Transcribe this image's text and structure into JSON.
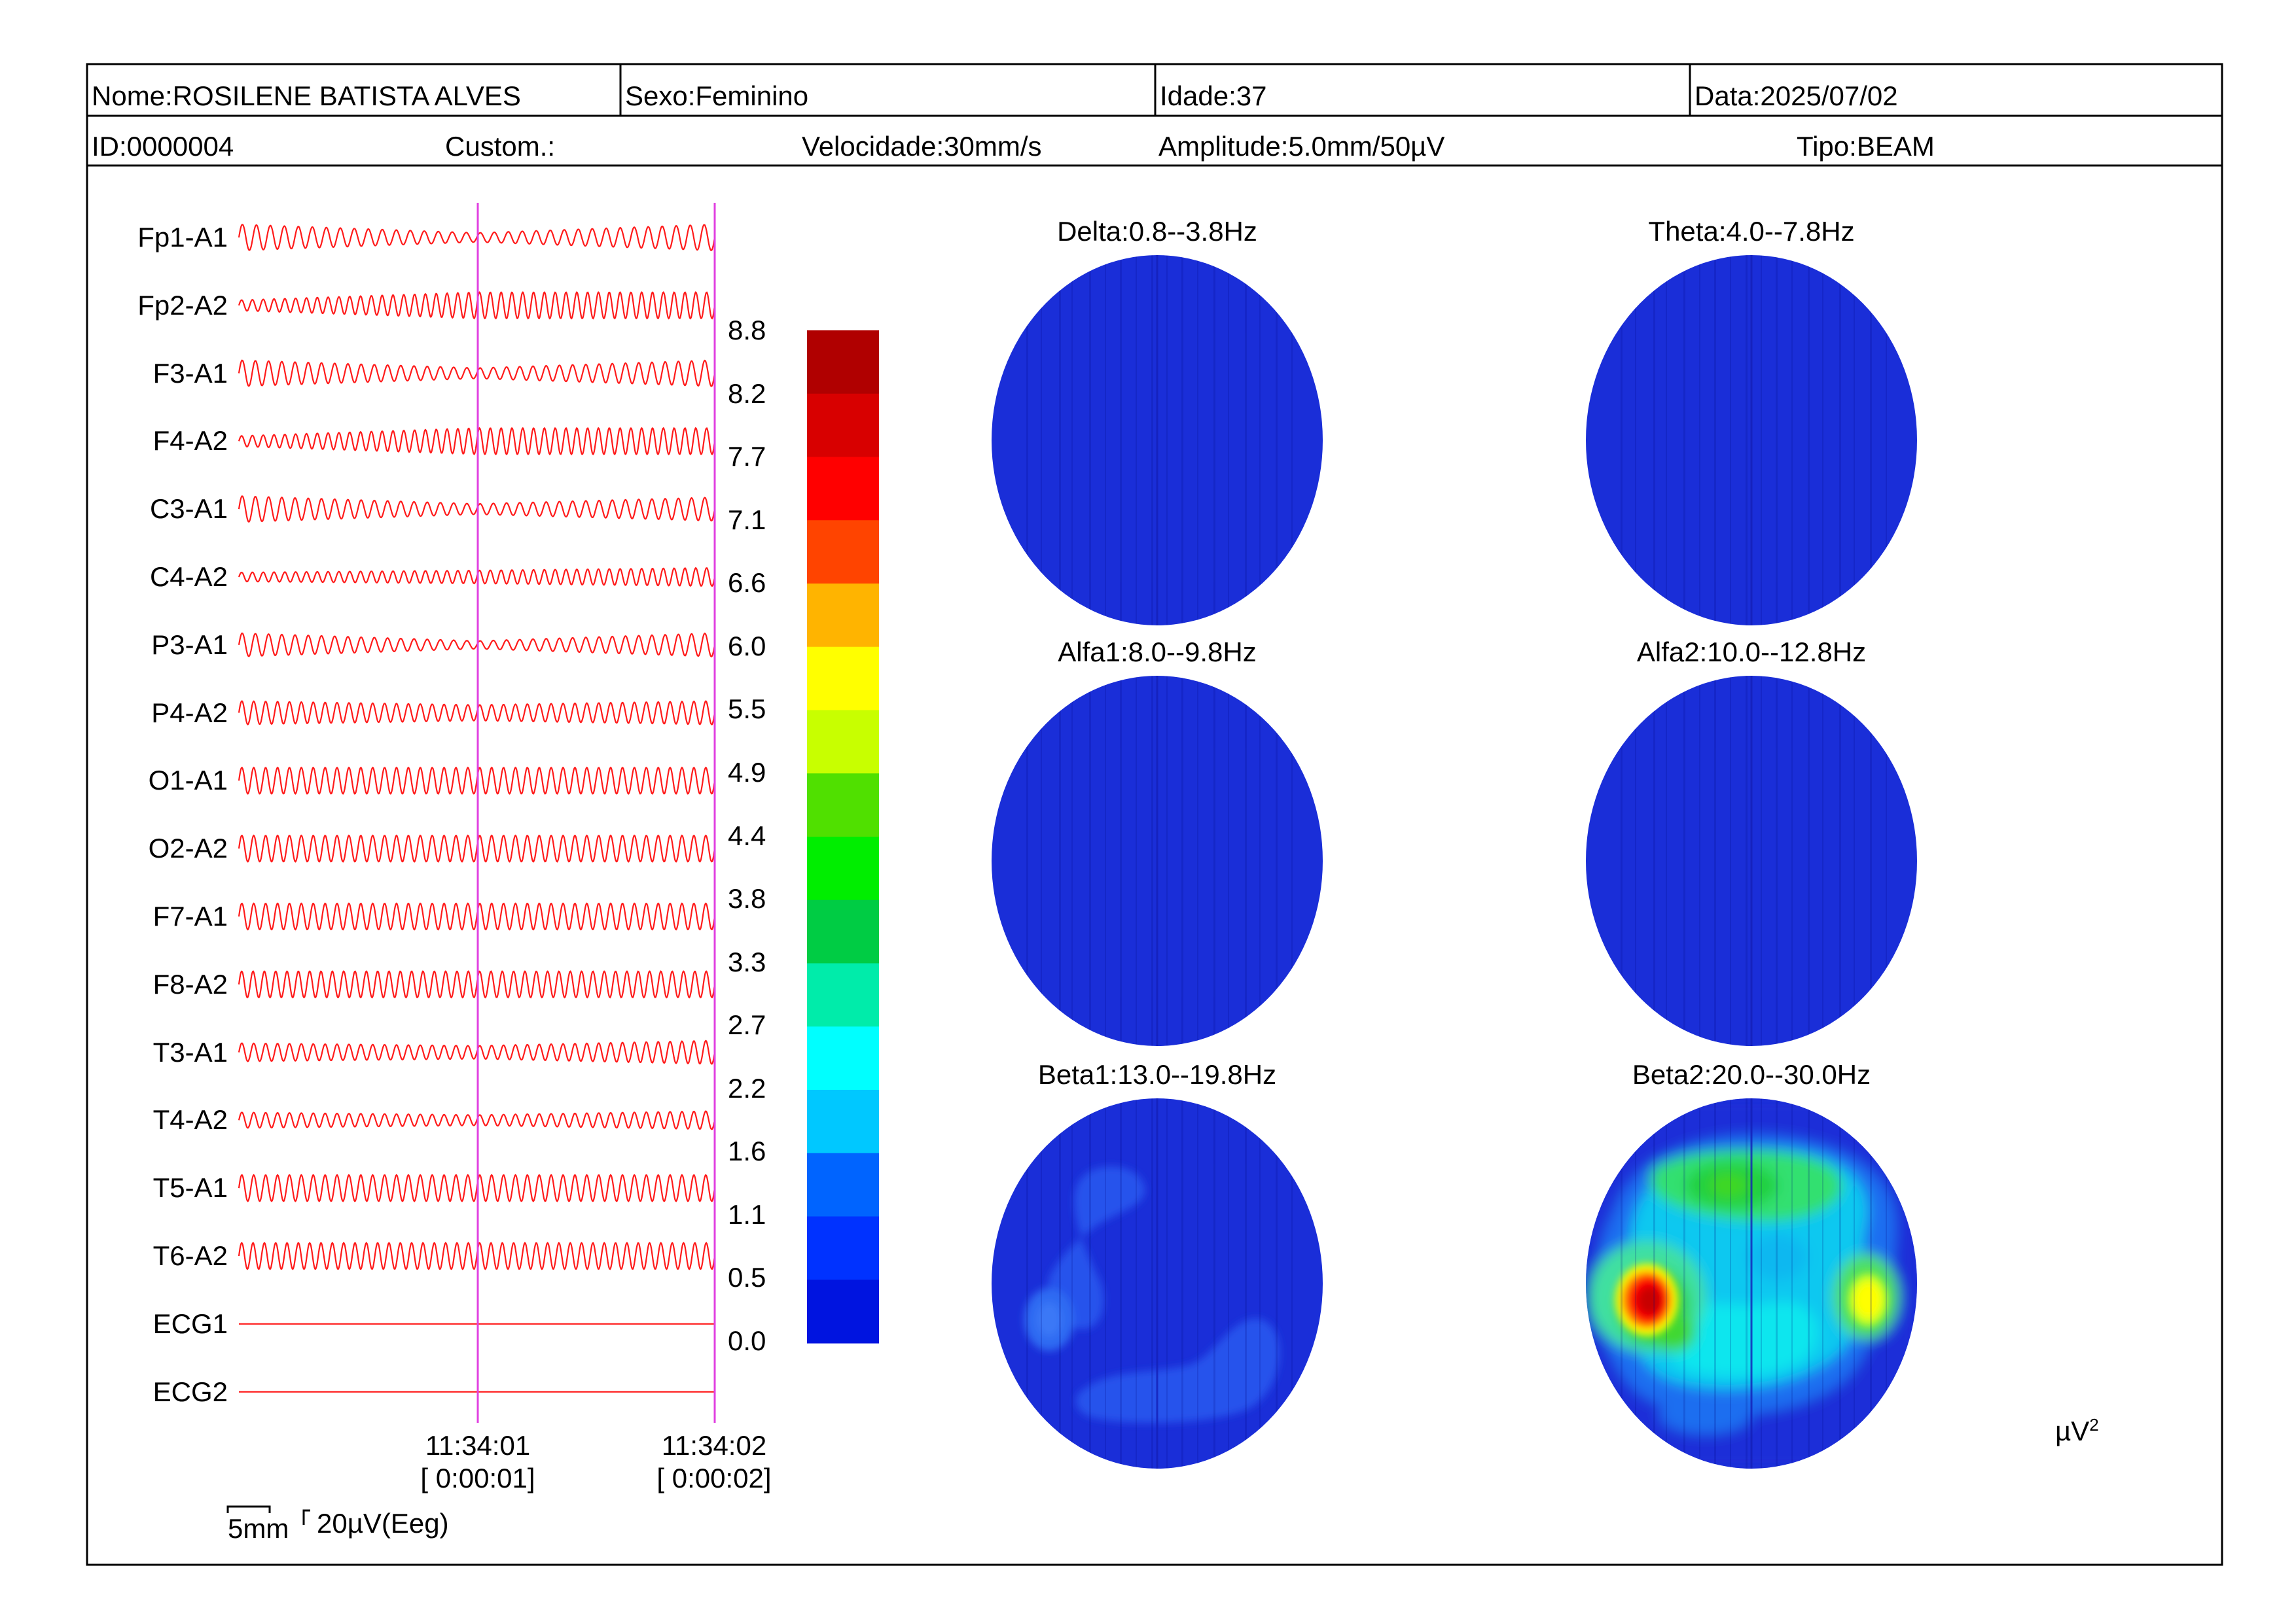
{
  "header": {
    "nome": "Nome:ROSILENE BATISTA ALVES",
    "sexo": "Sexo:Feminino",
    "idade": "Idade:37",
    "data": "Data:2025/07/02",
    "id": "ID:0000004",
    "custom": "Custom.:",
    "velocidade": "Velocidade:30mm/s",
    "amplitude": "Amplitude:5.0mm/50µV",
    "tipo": "Tipo:BEAM"
  },
  "channels": [
    {
      "label": "Fp1-A1",
      "amp": [
        1.0,
        0.35,
        1.0
      ],
      "cycles": 34
    },
    {
      "label": "Fp2-A2",
      "amp": [
        0.4,
        1.0,
        1.0
      ],
      "cycles": 44
    },
    {
      "label": "F3-A1",
      "amp": [
        1.0,
        0.4,
        1.0
      ],
      "cycles": 36
    },
    {
      "label": "F4-A2",
      "amp": [
        0.4,
        1.0,
        1.0
      ],
      "cycles": 44
    },
    {
      "label": "C3-A1",
      "amp": [
        1.0,
        0.4,
        0.9
      ],
      "cycles": 36
    },
    {
      "label": "C4-A2",
      "amp": [
        0.35,
        0.5,
        0.7
      ],
      "cycles": 44
    },
    {
      "label": "P3-A1",
      "amp": [
        0.9,
        0.3,
        0.9
      ],
      "cycles": 36
    },
    {
      "label": "P4-A2",
      "amp": [
        0.9,
        0.6,
        0.9
      ],
      "cycles": 40
    },
    {
      "label": "O1-A1",
      "amp": [
        1.0,
        1.0,
        1.0
      ],
      "cycles": 40
    },
    {
      "label": "O2-A2",
      "amp": [
        1.0,
        1.0,
        1.0
      ],
      "cycles": 40
    },
    {
      "label": "F7-A1",
      "amp": [
        1.0,
        1.0,
        1.0
      ],
      "cycles": 40
    },
    {
      "label": "F8-A2",
      "amp": [
        1.0,
        1.0,
        1.0
      ],
      "cycles": 42
    },
    {
      "label": "T3-A1",
      "amp": [
        0.7,
        0.5,
        0.9
      ],
      "cycles": 40
    },
    {
      "label": "T4-A2",
      "amp": [
        0.6,
        0.4,
        0.7
      ],
      "cycles": 40
    },
    {
      "label": "T5-A1",
      "amp": [
        1.0,
        1.0,
        1.0
      ],
      "cycles": 40
    },
    {
      "label": "T6-A2",
      "amp": [
        1.0,
        1.0,
        1.0
      ],
      "cycles": 42
    },
    {
      "label": "ECG1",
      "amp": [
        0,
        0,
        0
      ],
      "cycles": 0
    },
    {
      "label": "ECG2",
      "amp": [
        0,
        0,
        0
      ],
      "cycles": 0
    }
  ],
  "time_marks": [
    {
      "time": "11:34:01",
      "elapsed": "[ 0:00:01]"
    },
    {
      "time": "11:34:02",
      "elapsed": "[ 0:00:02]"
    }
  ],
  "scale": {
    "time": "5mm",
    "amplitude": "20µV(Eeg)"
  },
  "colorbar": {
    "ticks": [
      "8.8",
      "8.2",
      "7.7",
      "7.1",
      "6.6",
      "6.0",
      "5.5",
      "4.9",
      "4.4",
      "3.8",
      "3.3",
      "2.7",
      "2.2",
      "1.6",
      "1.1",
      "0.5",
      "0.0"
    ],
    "colors": [
      "#b00000",
      "#d80000",
      "#ff0000",
      "#ff4400",
      "#ffb400",
      "#ffff00",
      "#c8ff00",
      "#50e000",
      "#00ee00",
      "#00cc44",
      "#00ecaa",
      "#00ffff",
      "#00c8ff",
      "#0064ff",
      "#0032ff",
      "#0014e0"
    ]
  },
  "unit": "µV",
  "unit_exp": "2",
  "maps": [
    {
      "title": "Delta:0.8--3.8Hz",
      "type": "flat"
    },
    {
      "title": "Theta:4.0--7.8Hz",
      "type": "flat"
    },
    {
      "title": "Alfa1:8.0--9.8Hz",
      "type": "flat"
    },
    {
      "title": "Alfa2:10.0--12.8Hz",
      "type": "flat"
    },
    {
      "title": "Beta1:13.0--19.8Hz",
      "type": "beta1"
    },
    {
      "title": "Beta2:20.0--30.0Hz",
      "type": "beta2"
    }
  ]
}
